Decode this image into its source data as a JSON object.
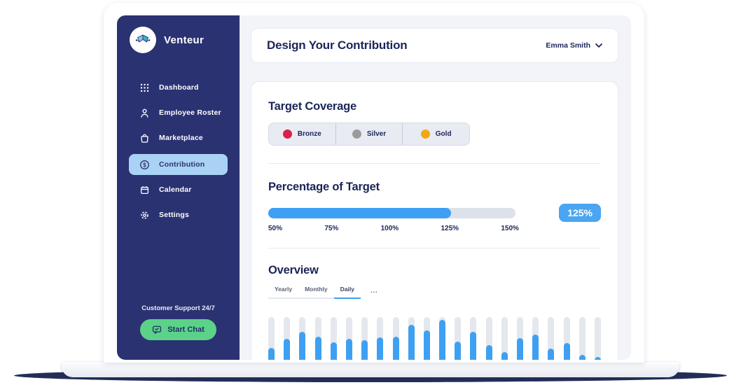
{
  "sidebar": {
    "brand": "Venteur",
    "items": [
      {
        "label": "Dashboard",
        "icon": "grid-icon",
        "active": false
      },
      {
        "label": "Employee Roster",
        "icon": "person-icon",
        "active": false
      },
      {
        "label": "Marketplace",
        "icon": "bag-icon",
        "active": false
      },
      {
        "label": "Contribution",
        "icon": "dollar-icon",
        "active": true
      },
      {
        "label": "Calendar",
        "icon": "calendar-icon",
        "active": false
      },
      {
        "label": "Settings",
        "icon": "gear-icon",
        "active": false
      }
    ],
    "support_text": "Customer Support 24/7",
    "chat_button": "Start Chat"
  },
  "header": {
    "title": "Design Your Contribution",
    "user": "Emma Smith"
  },
  "target_coverage": {
    "title": "Target Coverage",
    "tiers": [
      {
        "label": "Bronze",
        "color": "#d92048"
      },
      {
        "label": "Silver",
        "color": "#9b9b9b"
      },
      {
        "label": "Gold",
        "color": "#f2a716"
      }
    ]
  },
  "percentage_of_target": {
    "title": "Percentage of Target",
    "value_label": "125%",
    "progress_percent": 74,
    "ticks": [
      "50%",
      "75%",
      "100%",
      "125%",
      "150%"
    ]
  },
  "overview": {
    "title": "Overview",
    "tabs": [
      {
        "label": "Yearly",
        "active": false
      },
      {
        "label": "Monthly",
        "active": false
      },
      {
        "label": "Daily",
        "active": true
      }
    ],
    "more_label": "..."
  },
  "chart_data": {
    "type": "bar",
    "title": "Overview — Daily contributions",
    "legend": "none",
    "x_labels_visible": false,
    "ylim": [
      0,
      100
    ],
    "values_percent": [
      45,
      61,
      74,
      65,
      55,
      61,
      59,
      64,
      65,
      86,
      76,
      95,
      56,
      74,
      50,
      38,
      63,
      69,
      44,
      54,
      33,
      29
    ],
    "colors": {
      "fill": "#3ea0f2",
      "track": "#e4e7ed"
    }
  },
  "colors": {
    "sidebar_navy": "#2b3272",
    "heading_navy": "#1b2559",
    "accent_blue": "#3ea0f2",
    "badge_blue": "#4aa5f2",
    "active_item_bg": "#a9d2f4",
    "chat_green": "#5bd287",
    "main_bg": "#f3f4f9"
  }
}
